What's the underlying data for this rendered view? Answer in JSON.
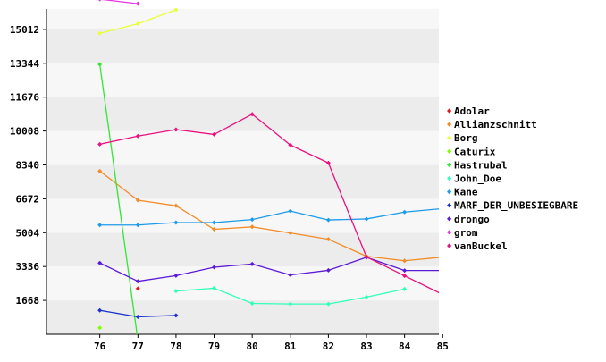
{
  "chart_data": {
    "type": "line",
    "title": "",
    "xlabel": "",
    "ylabel": "",
    "x": [
      76,
      77,
      78,
      79,
      80,
      81,
      82,
      83,
      84,
      85
    ],
    "xlim": [
      74.6,
      84.9
    ],
    "ylim": [
      0,
      16020
    ],
    "yticks": [
      1668,
      3336,
      5004,
      6672,
      8340,
      10008,
      11676,
      13344,
      15012
    ],
    "xticks": [
      76,
      77,
      78,
      79,
      80,
      81,
      82,
      83,
      84,
      85
    ],
    "grid": "horizontal alternating bands",
    "legend_position": "right",
    "series": [
      {
        "name": "Adolar",
        "color": "#e31a1c",
        "values": [
          null,
          2250,
          null,
          null,
          null,
          null,
          null,
          null,
          null,
          null
        ]
      },
      {
        "name": "Allianzschnitt",
        "color": "#f28c28",
        "values": [
          8040,
          6600,
          6330,
          5170,
          5290,
          4990,
          4680,
          3840,
          3620,
          3800
        ]
      },
      {
        "name": "Borg",
        "color": "#eaff3a",
        "values": [
          14820,
          15290,
          15980,
          null,
          null,
          null,
          null,
          null,
          null,
          null
        ]
      },
      {
        "name": "Caturix",
        "color": "#7fff00",
        "values": [
          320,
          null,
          null,
          null,
          null,
          null,
          null,
          null,
          null,
          null
        ]
      },
      {
        "name": "Hastrubal",
        "color": "#33e633",
        "values": [
          13290,
          -300,
          null,
          null,
          null,
          null,
          null,
          null,
          null,
          null
        ]
      },
      {
        "name": "John_Doe",
        "color": "#33ffbb",
        "values": [
          null,
          null,
          2130,
          2270,
          1520,
          1490,
          1490,
          1830,
          2230,
          null
        ]
      },
      {
        "name": "Kane",
        "color": "#1e9be8",
        "values": [
          5380,
          5380,
          5500,
          5500,
          5650,
          6070,
          5630,
          5680,
          6020,
          6190
        ]
      },
      {
        "name": "MARF_DER_UNBESIEGBARE",
        "color": "#1a33cc",
        "values": [
          1180,
          860,
          930,
          null,
          null,
          null,
          null,
          null,
          null,
          null
        ]
      },
      {
        "name": "drongo",
        "color": "#5b1ad6",
        "values": [
          3510,
          2610,
          2890,
          3300,
          3460,
          2920,
          3150,
          3790,
          3140,
          3140
        ]
      },
      {
        "name": "grom",
        "color": "#e633e6",
        "values": [
          16500,
          16280,
          null,
          null,
          null,
          null,
          null,
          null,
          null,
          null
        ]
      },
      {
        "name": "vanBuckel",
        "color": "#e8117f",
        "values": [
          9360,
          9760,
          10080,
          9840,
          10840,
          9320,
          8440,
          3810,
          2880,
          1960
        ]
      }
    ]
  }
}
